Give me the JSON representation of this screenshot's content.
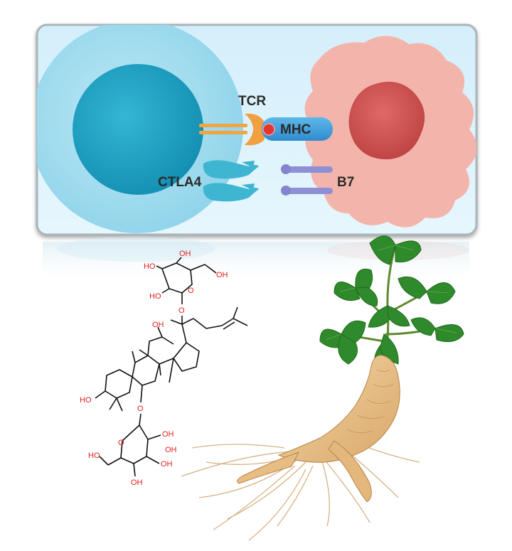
{
  "panel": {
    "labels": {
      "tcr": "TCR",
      "mhc": "MHC",
      "ctla4": "CTLA4",
      "b7": "B7"
    }
  },
  "molecule": {
    "labels": {
      "oh_sugar_top_1": "OH",
      "oh_sugar_top_2": "HO",
      "oh_sugar_top_3": "OH",
      "oh_sugar_top_4": "HO",
      "o_ring_top": "O",
      "o_link_top": "O",
      "oh_c12": "OH",
      "ho_c3": "HO",
      "o_link_bottom": "O",
      "o_ring_bottom": "O",
      "oh_sugar_bot_1": "OH",
      "oh_sugar_bot_2": "OH",
      "ho_sugar_bot_3": "HO",
      "oh_sugar_bot_4": "OH",
      "oh_sugar_bot_5": "OH"
    },
    "colors": {
      "heteroatom": "#e0201e",
      "bond": "#111111"
    }
  },
  "colors": {
    "tcell_outer": "#9fdcef",
    "tcell_inner": "#1ea0c2",
    "apc_body": "#f4b6ac",
    "apc_nucleus": "#d2504f",
    "tcr": "#f0a040",
    "mhc": "#3a9fdc",
    "ctla4": "#3fb7d2",
    "b7": "#8f8fd6",
    "leaf": "#2f8a2b",
    "root": "#e7c08a"
  }
}
